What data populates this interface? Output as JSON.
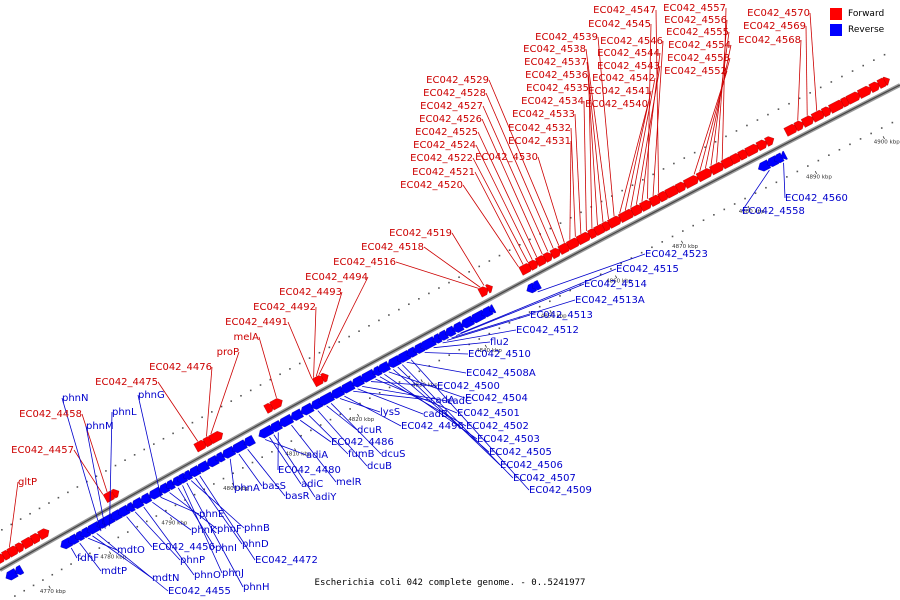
{
  "caption": "Escherichia coli 042 complete genome. - 0..5241977",
  "legend": [
    {
      "label": "Forward",
      "color": "#ff0000"
    },
    {
      "label": "Reverse",
      "color": "#0000ff"
    }
  ],
  "colors": {
    "forward": "#ff0000",
    "forward_label": "#cc0000",
    "reverse": "#0000ff",
    "reverse_label": "#0000cc",
    "backbone": "#7f7f7f"
  },
  "axis_ticks": [
    {
      "label": "4770 kbp",
      "kbp": 4770
    },
    {
      "label": "4780 kbp",
      "kbp": 4780
    },
    {
      "label": "4790 kbp",
      "kbp": 4790
    },
    {
      "label": "4800 kbp",
      "kbp": 4800
    },
    {
      "label": "4810 kbp",
      "kbp": 4810
    },
    {
      "label": "4820 kbp",
      "kbp": 4820
    },
    {
      "label": "4830 kbp",
      "kbp": 4830
    },
    {
      "label": "4840 kbp",
      "kbp": 4840
    },
    {
      "label": "4850 kbp",
      "kbp": 4850
    },
    {
      "label": "4860 kbp",
      "kbp": 4860
    },
    {
      "label": "4870 kbp",
      "kbp": 4870
    },
    {
      "label": "4880 kbp",
      "kbp": 4880
    },
    {
      "label": "4890 kbp",
      "kbp": 4890
    },
    {
      "label": "4900 kbp",
      "kbp": 4900
    }
  ],
  "forward_labels": [
    "gltP",
    "EC042_4457",
    "EC042_4458",
    "EC042_4475",
    "EC042_4476",
    "proP",
    "melA",
    "EC042_4491",
    "EC042_4492",
    "EC042_4493",
    "EC042_4494",
    "EC042_4516",
    "EC042_4518",
    "EC042_4519",
    "EC042_4520",
    "EC042_4521",
    "EC042_4522",
    "EC042_4524",
    "EC042_4525",
    "EC042_4526",
    "EC042_4527",
    "EC042_4528",
    "EC042_4529",
    "EC042_4530",
    "EC042_4531",
    "EC042_4532",
    "EC042_4533",
    "EC042_4534",
    "EC042_4535",
    "EC042_4536",
    "EC042_4537",
    "EC042_4538",
    "EC042_4539",
    "EC042_4540",
    "EC042_4541",
    "EC042_4542",
    "EC042_4543",
    "EC042_4544",
    "EC042_4545",
    "EC042_4546",
    "EC042_4547",
    "EC042_4552",
    "EC042_4553",
    "EC042_4554",
    "EC042_4555",
    "EC042_4556",
    "EC042_4557",
    "EC042_4568",
    "EC042_4569",
    "EC042_4570"
  ],
  "reverse_labels": [
    "phnN",
    "phnM",
    "phnL",
    "phnG",
    "fdhF",
    "mdtP",
    "mdtO",
    "mdtN",
    "EC042_4455",
    "EC042_4456",
    "phnP",
    "phnO",
    "phnK",
    "phnE",
    "phnF",
    "phnI",
    "phnJ",
    "phnH",
    "phnB",
    "phnD",
    "EC042_4472",
    "phnA",
    "basS",
    "basR",
    "adiA",
    "adiC",
    "adiY",
    "EC042_4480",
    "melR",
    "EC042_4486",
    "fumB",
    "dcuB",
    "dcuR",
    "dcuS",
    "lysS",
    "EC042_4496",
    "cadA",
    "cadB",
    "cadC",
    "EC042_4500",
    "EC042_4501",
    "EC042_4502",
    "EC042_4503",
    "EC042_4504",
    "EC042_4505",
    "EC042_4506",
    "EC042_4507",
    "EC042_4508A",
    "EC042_4509",
    "EC042_4510",
    "flu2",
    "EC042_4512",
    "EC042_4513",
    "EC042_4513A",
    "EC042_4514",
    "EC042_4515",
    "EC042_4523",
    "EC042_4558",
    "EC042_4560"
  ]
}
